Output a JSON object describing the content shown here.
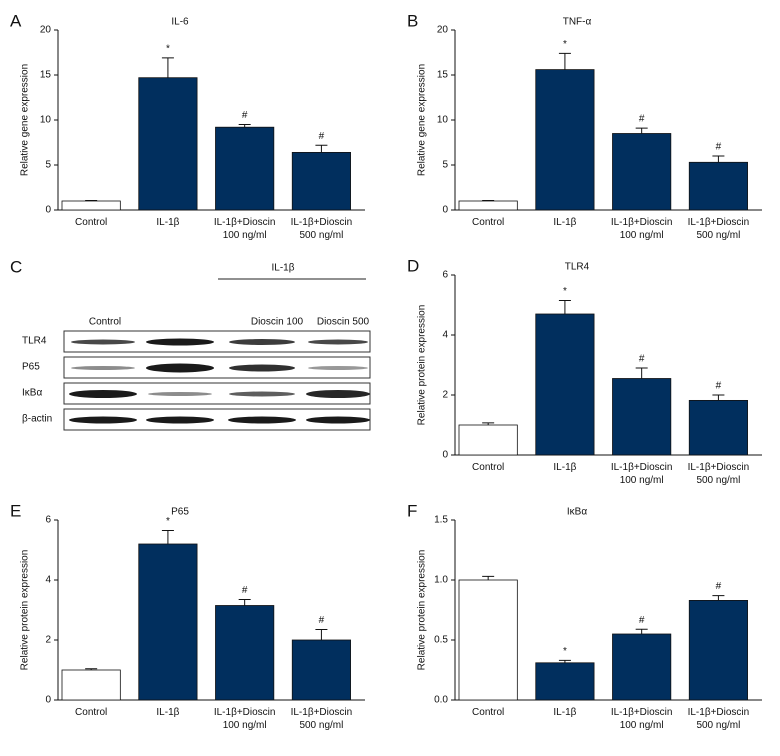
{
  "chart_data": [
    {
      "type": "bar",
      "label": "A",
      "title": "IL-6",
      "ylabel": "Relative gene expression",
      "categories": [
        "Control",
        "IL-1β",
        "IL-1β+Dioscin\n100 ng/ml",
        "IL-1β+Dioscin\n500 ng/ml"
      ],
      "values": [
        1,
        14.7,
        9.2,
        6.4
      ],
      "errors": [
        0.05,
        2.2,
        0.3,
        0.8
      ],
      "annotations": [
        null,
        "*",
        "#",
        "#"
      ],
      "colors": [
        "#ffffff",
        "#012f5e",
        "#012f5e",
        "#012f5e"
      ],
      "ylim": [
        0,
        20
      ],
      "yticks": [
        0,
        5,
        10,
        15,
        20
      ]
    },
    {
      "type": "bar",
      "label": "B",
      "title": "TNF-α",
      "ylabel": "Relative gene expression",
      "categories": [
        "Control",
        "IL-1β",
        "IL-1β+Dioscin\n100 ng/ml",
        "IL-1β+Dioscin\n500 ng/ml"
      ],
      "values": [
        1,
        15.6,
        8.5,
        5.3
      ],
      "errors": [
        0.05,
        1.8,
        0.6,
        0.7
      ],
      "annotations": [
        null,
        "*",
        "#",
        "#"
      ],
      "colors": [
        "#ffffff",
        "#012f5e",
        "#012f5e",
        "#012f5e"
      ],
      "ylim": [
        0,
        20
      ],
      "yticks": [
        0,
        5,
        10,
        15,
        20
      ]
    },
    {
      "type": "bar",
      "label": "D",
      "title": "TLR4",
      "ylabel": "Relative protein expression",
      "categories": [
        "Control",
        "IL-1β",
        "IL-1β+Dioscin\n100 ng/ml",
        "IL-1β+Dioscin\n500 ng/ml"
      ],
      "values": [
        1.0,
        4.7,
        2.55,
        1.82
      ],
      "errors": [
        0.07,
        0.45,
        0.35,
        0.18
      ],
      "annotations": [
        null,
        "*",
        "#",
        "#"
      ],
      "colors": [
        "#ffffff",
        "#012f5e",
        "#012f5e",
        "#012f5e"
      ],
      "ylim": [
        0,
        6
      ],
      "yticks": [
        0,
        2,
        4,
        6
      ]
    },
    {
      "type": "bar",
      "label": "E",
      "title": "P65",
      "ylabel": "Relative protein expression",
      "categories": [
        "Control",
        "IL-1β",
        "IL-1β+Dioscin\n100 ng/ml",
        "IL-1β+Dioscin\n500 ng/ml"
      ],
      "values": [
        1.0,
        5.2,
        3.15,
        2.0
      ],
      "errors": [
        0.04,
        0.45,
        0.2,
        0.35
      ],
      "annotations": [
        null,
        "*",
        "#",
        "#"
      ],
      "colors": [
        "#ffffff",
        "#012f5e",
        "#012f5e",
        "#012f5e"
      ],
      "ylim": [
        0,
        6
      ],
      "yticks": [
        0,
        2,
        4,
        6
      ]
    },
    {
      "type": "bar",
      "label": "F",
      "title": "IκBα",
      "ylabel": "Relative protein expression",
      "categories": [
        "Control",
        "IL-1β",
        "IL-1β+Dioscin\n100 ng/ml",
        "IL-1β+Dioscin\n500 ng/ml"
      ],
      "values": [
        1.0,
        0.31,
        0.55,
        0.83
      ],
      "errors": [
        0.03,
        0.02,
        0.04,
        0.04
      ],
      "annotations": [
        null,
        "*",
        "#",
        "#"
      ],
      "colors": [
        "#ffffff",
        "#012f5e",
        "#012f5e",
        "#012f5e"
      ],
      "ylim": [
        0,
        1.5
      ],
      "yticks": [
        {
          "value": 0,
          "label": "0.0"
        },
        {
          "value": 0.5,
          "label": "0.5"
        },
        {
          "value": 1,
          "label": "1.0"
        },
        {
          "value": 1.5,
          "label": "1.5"
        }
      ]
    }
  ],
  "blot": {
    "label": "C",
    "header": "IL-1β",
    "lanes": [
      "Control",
      "Dioscin 100",
      "Dioscin 500"
    ],
    "rows": [
      "TLR4",
      "P65",
      "IκBα",
      "β-actin"
    ]
  }
}
